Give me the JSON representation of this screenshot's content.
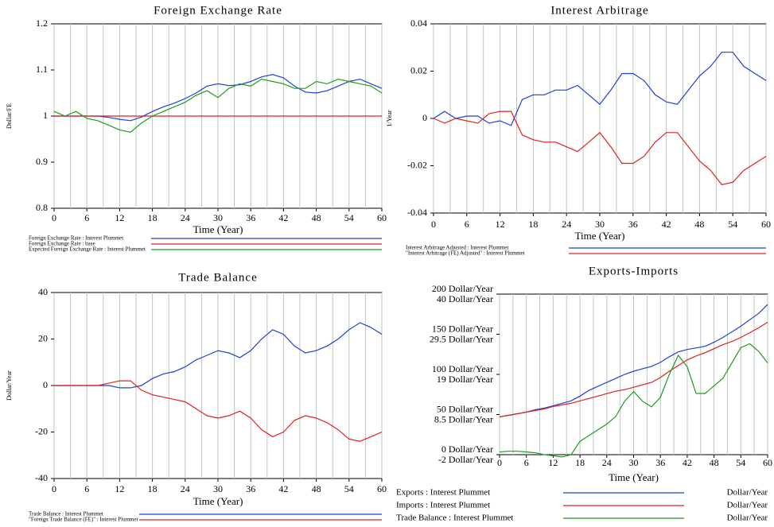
{
  "chart_data": [
    {
      "type": "line",
      "title": "Foreign Exchange Rate",
      "xlabel": "Time (Year)",
      "ylabel": "Dollar/FE",
      "x": [
        0,
        2,
        4,
        6,
        8,
        10,
        12,
        14,
        16,
        18,
        20,
        22,
        24,
        26,
        28,
        30,
        32,
        34,
        36,
        38,
        40,
        42,
        44,
        46,
        48,
        50,
        52,
        54,
        56,
        58,
        60
      ],
      "xlim": [
        0,
        60
      ],
      "xticks": [
        0,
        6,
        12,
        18,
        24,
        30,
        36,
        42,
        48,
        54,
        60
      ],
      "x_grid_lines": [
        0,
        3,
        6,
        9,
        12,
        15,
        18,
        21,
        24,
        27,
        30,
        33,
        36,
        39,
        42,
        45,
        48,
        51,
        54,
        57,
        60
      ],
      "ylim": [
        0.8,
        1.2
      ],
      "yticks": [
        0.8,
        0.9,
        1,
        1.1,
        1.2
      ],
      "series": [
        {
          "name": "Foreign Exchange Rate : Interest Plummet",
          "color": "#1f3fd8",
          "values": [
            1.0,
            1.0,
            1.0,
            1.0,
            1.0,
            0.997,
            0.993,
            0.99,
            0.998,
            1.01,
            1.02,
            1.028,
            1.038,
            1.05,
            1.065,
            1.07,
            1.066,
            1.068,
            1.075,
            1.085,
            1.09,
            1.083,
            1.065,
            1.052,
            1.05,
            1.055,
            1.065,
            1.075,
            1.08,
            1.07,
            1.06
          ]
        },
        {
          "name": "Foreign Exchange Rate : base",
          "color": "#e0201f",
          "values": [
            1,
            1,
            1,
            1,
            1,
            1,
            1,
            1,
            1,
            1,
            1,
            1,
            1,
            1,
            1,
            1,
            1,
            1,
            1,
            1,
            1,
            1,
            1,
            1,
            1,
            1,
            1,
            1,
            1,
            1,
            1
          ]
        },
        {
          "name": "Expected Foreign Exchange Rate : Interest Plummet",
          "color": "#1f9a1f",
          "values": [
            1.01,
            1.0,
            1.01,
            0.995,
            0.99,
            0.98,
            0.97,
            0.965,
            0.985,
            1.0,
            1.01,
            1.02,
            1.03,
            1.045,
            1.055,
            1.04,
            1.06,
            1.07,
            1.065,
            1.08,
            1.075,
            1.07,
            1.06,
            1.06,
            1.075,
            1.07,
            1.08,
            1.075,
            1.07,
            1.065,
            1.05
          ]
        }
      ]
    },
    {
      "type": "line",
      "title": "Interest Arbitrage",
      "xlabel": "Time (Year)",
      "ylabel": "1/Year",
      "x": [
        0,
        2,
        4,
        6,
        8,
        10,
        12,
        14,
        16,
        18,
        20,
        22,
        24,
        26,
        28,
        30,
        32,
        34,
        36,
        38,
        40,
        42,
        44,
        46,
        48,
        50,
        52,
        54,
        56,
        58,
        60
      ],
      "xlim": [
        0,
        60
      ],
      "xticks": [
        0,
        6,
        12,
        18,
        24,
        30,
        36,
        42,
        48,
        54,
        60
      ],
      "x_grid_lines": [
        0,
        3,
        6,
        9,
        12,
        15,
        18,
        21,
        24,
        27,
        30,
        33,
        36,
        39,
        42,
        45,
        48,
        51,
        54,
        57,
        60
      ],
      "ylim": [
        -0.04,
        0.04
      ],
      "yticks": [
        -0.04,
        -0.02,
        0,
        0.02,
        0.04
      ],
      "series": [
        {
          "name": "Interest Arbitrage Adjusted : Interest Plummet",
          "color": "#1f3fd8",
          "values": [
            0,
            0.003,
            0,
            0.001,
            0.001,
            -0.002,
            -0.001,
            -0.003,
            0.008,
            0.01,
            0.01,
            0.012,
            0.012,
            0.014,
            0.01,
            0.006,
            0.012,
            0.019,
            0.019,
            0.016,
            0.01,
            0.007,
            0.006,
            0.012,
            0.018,
            0.022,
            0.028,
            0.028,
            0.022,
            0.019,
            0.016
          ]
        },
        {
          "name": "\"Interest Arbitrage (FE) Adjusted\" : Interest Plummet",
          "color": "#e0201f",
          "values": [
            0,
            -0.002,
            0,
            -0.001,
            -0.002,
            0.002,
            0.003,
            0.003,
            -0.007,
            -0.009,
            -0.01,
            -0.01,
            -0.012,
            -0.014,
            -0.01,
            -0.006,
            -0.012,
            -0.019,
            -0.019,
            -0.016,
            -0.01,
            -0.006,
            -0.006,
            -0.012,
            -0.018,
            -0.022,
            -0.028,
            -0.027,
            -0.022,
            -0.019,
            -0.016
          ]
        }
      ]
    },
    {
      "type": "line",
      "title": "Trade Balance",
      "xlabel": "Time (Year)",
      "ylabel": "Dollar/Year",
      "x": [
        0,
        2,
        4,
        6,
        8,
        10,
        12,
        14,
        16,
        18,
        20,
        22,
        24,
        26,
        28,
        30,
        32,
        34,
        36,
        38,
        40,
        42,
        44,
        46,
        48,
        50,
        52,
        54,
        56,
        58,
        60
      ],
      "xlim": [
        0,
        60
      ],
      "xticks": [
        0,
        6,
        12,
        18,
        24,
        30,
        36,
        42,
        48,
        54,
        60
      ],
      "x_grid_lines": [
        0,
        3,
        6,
        9,
        12,
        15,
        18,
        21,
        24,
        27,
        30,
        33,
        36,
        39,
        42,
        45,
        48,
        51,
        54,
        57,
        60
      ],
      "ylim": [
        -40,
        40
      ],
      "yticks": [
        -40,
        -20,
        0,
        20,
        40
      ],
      "series": [
        {
          "name": "Trade Balance : Interest Plummet",
          "color": "#1f3fd8",
          "values": [
            0,
            0,
            0,
            0,
            0,
            0,
            -1,
            -1,
            0,
            3,
            5,
            6,
            8,
            11,
            13,
            15,
            14,
            12,
            15,
            20,
            24,
            22,
            17,
            14,
            15,
            17,
            20,
            24,
            27,
            25,
            22
          ]
        },
        {
          "name": "\"Foreign Trade Balance (FE)\" : Interest Plummet",
          "color": "#e0201f",
          "values": [
            0,
            0,
            0,
            0,
            0,
            1,
            2,
            2,
            -2,
            -4,
            -5,
            -6,
            -7,
            -10,
            -13,
            -14,
            -13,
            -11,
            -14,
            -19,
            -22,
            -20,
            -15,
            -13,
            -14,
            -16,
            -19,
            -23,
            -24,
            -22,
            -20
          ]
        }
      ]
    },
    {
      "type": "line",
      "title": "Exports-Imports",
      "xlabel": "Time (Year)",
      "x": [
        0,
        2,
        4,
        6,
        8,
        10,
        12,
        14,
        16,
        18,
        20,
        22,
        24,
        26,
        28,
        30,
        32,
        34,
        36,
        38,
        40,
        42,
        44,
        46,
        48,
        50,
        52,
        54,
        56,
        58,
        60
      ],
      "xlim": [
        0,
        60
      ],
      "xticks": [
        0,
        6,
        12,
        18,
        24,
        30,
        36,
        42,
        48,
        54,
        60
      ],
      "x_grid_lines": [
        0,
        3,
        6,
        9,
        12,
        15,
        18,
        21,
        24,
        27,
        30,
        33,
        36,
        39,
        42,
        45,
        48,
        51,
        54,
        57,
        60
      ],
      "ylim": [
        0,
        200
      ],
      "yticks": [
        {
          "value": 0,
          "label": "0 Dollar/Year"
        },
        {
          "value": 50,
          "label": "50 Dollar/Year"
        },
        {
          "value": 100,
          "label": "100 Dollar/Year"
        },
        {
          "value": 150,
          "label": "150 Dollar/Year"
        },
        {
          "value": 200,
          "label": "200 Dollar/Year"
        }
      ],
      "y2lim": [
        -2,
        40
      ],
      "y2ticks": [
        {
          "value": -2,
          "label": "-2 Dollar/Year"
        },
        {
          "value": 8.5,
          "label": "8.5 Dollar/Year"
        },
        {
          "value": 19,
          "label": "19 Dollar/Year"
        },
        {
          "value": 29.5,
          "label": "29.5 Dollar/Year"
        },
        {
          "value": 40,
          "label": "40 Dollar/Year"
        }
      ],
      "series": [
        {
          "name": "Exports : Interest Plummet",
          "unit": "Dollar/Year",
          "color": "#1f3fd8",
          "values": [
            47,
            49,
            51,
            53,
            56,
            58,
            61,
            64,
            67,
            73,
            80,
            85,
            90,
            95,
            100,
            104,
            107,
            110,
            115,
            122,
            128,
            131,
            133,
            135,
            140,
            146,
            153,
            160,
            168,
            176,
            187
          ]
        },
        {
          "name": "Imports : Interest Plummet",
          "unit": "Dollar/Year",
          "color": "#e0201f",
          "values": [
            47,
            49,
            51,
            53,
            55,
            57,
            60,
            62,
            64,
            67,
            70,
            73,
            76,
            79,
            81,
            84,
            87,
            90,
            96,
            104,
            111,
            118,
            123,
            127,
            132,
            137,
            141,
            146,
            152,
            158,
            165
          ]
        },
        {
          "name": "Trade Balance : Interest Plummet",
          "unit": "Dollar/Year",
          "color": "#1f9a1f",
          "axis": "y2",
          "values": [
            -1.3,
            -1.1,
            -1.1,
            -1.3,
            -1.5,
            -2,
            -2.3,
            -2.6,
            -2,
            1.5,
            3,
            4.5,
            6,
            8,
            12,
            14.5,
            12,
            10.5,
            13,
            19,
            24,
            21,
            14,
            14,
            16,
            18,
            22,
            26,
            27,
            25,
            22
          ]
        }
      ]
    }
  ]
}
